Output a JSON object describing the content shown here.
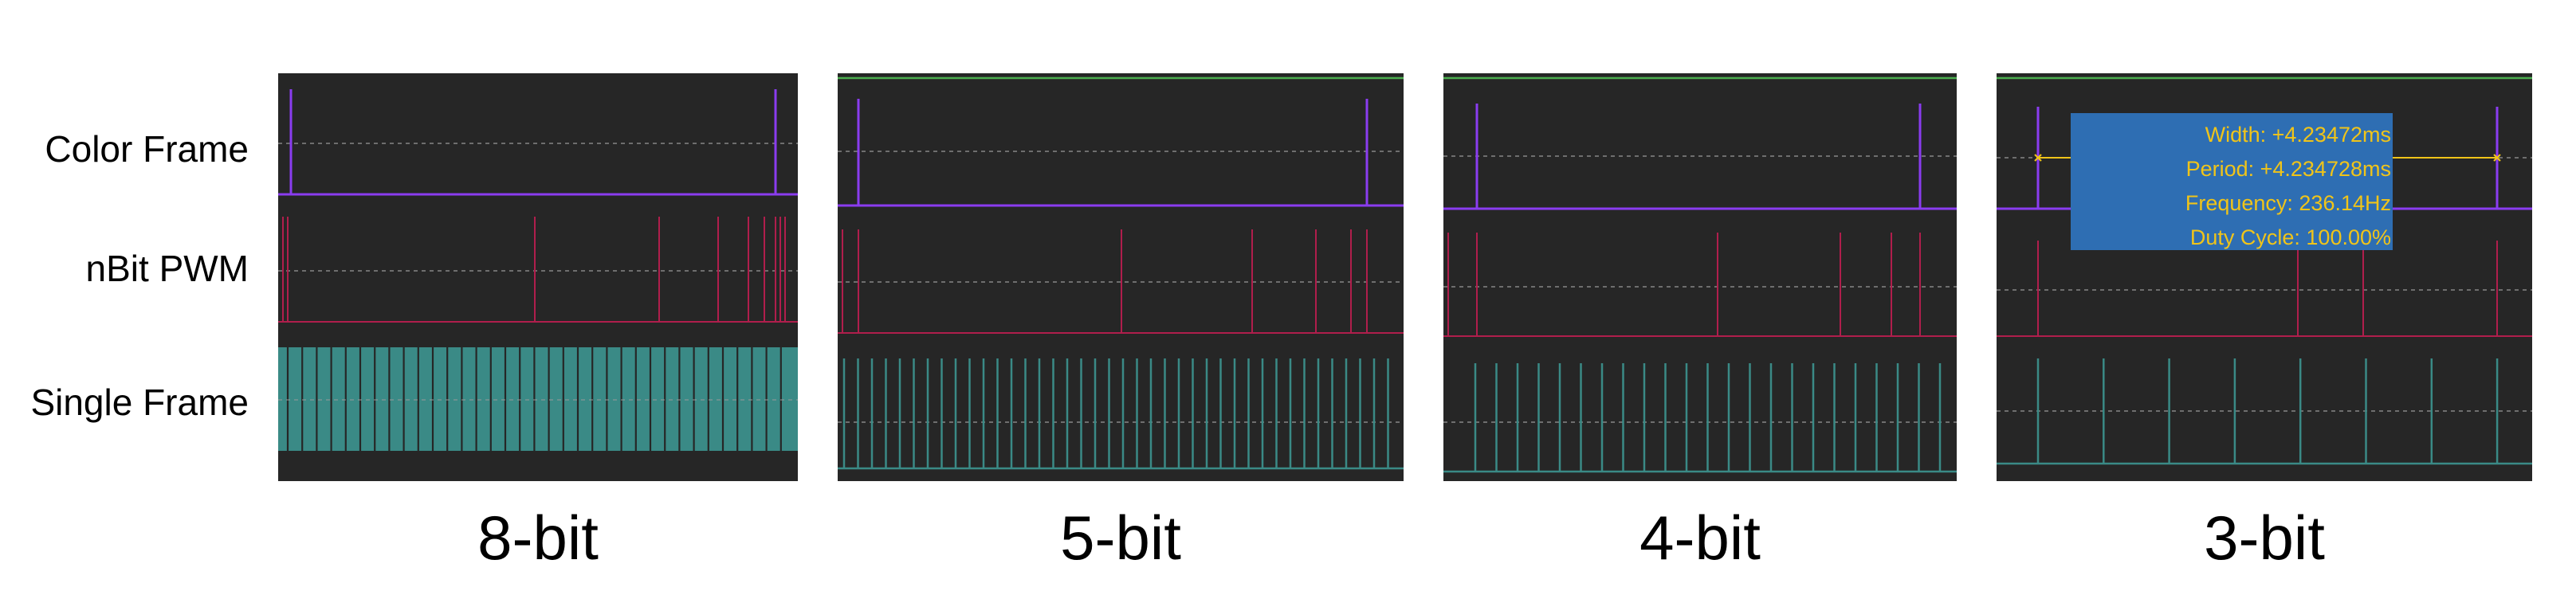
{
  "row_labels": [
    "Color Frame",
    "nBit PWM",
    "Single Frame"
  ],
  "panels": [
    {
      "caption": "8-bit",
      "single_frame": "dense"
    },
    {
      "caption": "5-bit",
      "single_frame": "pulses"
    },
    {
      "caption": "4-bit",
      "single_frame": "pulses"
    },
    {
      "caption": "3-bit",
      "single_frame": "pulses"
    }
  ],
  "tooltip": {
    "width": "Width: +4.23472ms",
    "period": "Period: +4.234728ms",
    "frequency": "Frequency: 236.14Hz",
    "duty_cycle": "Duty Cycle: 100.00%"
  },
  "colors": {
    "background": "#262626",
    "color_frame": "#8a3cf0",
    "nbit_pwm": "#b01e4c",
    "single_frame": "#3a8a86",
    "marker": "#f0c419",
    "top_line": "#4caf50"
  }
}
